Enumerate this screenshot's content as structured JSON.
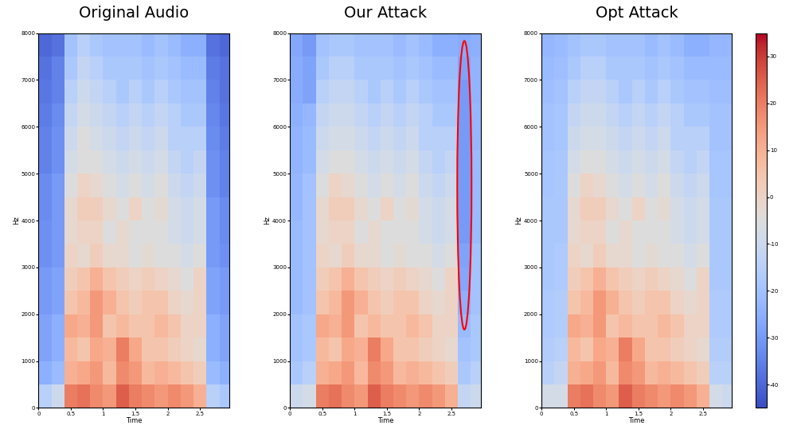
{
  "chart_data": [
    {
      "type": "heatmap",
      "title": "Original Audio",
      "x_label": "Time",
      "y_label": "Hz",
      "xlim": [
        0,
        2.95
      ],
      "ylim": [
        0,
        8000
      ],
      "xticks": [
        0,
        0.5,
        1,
        1.5,
        2,
        2.5
      ],
      "yticks": [
        0,
        1000,
        2000,
        3000,
        4000,
        5000,
        6000,
        7000,
        8000
      ],
      "x_edges": [
        0,
        0.2,
        0.4,
        0.6,
        0.8,
        1.0,
        1.2,
        1.4,
        1.6,
        1.8,
        2.0,
        2.2,
        2.4,
        2.6,
        2.8,
        3.0
      ],
      "y_edges": [
        0,
        500,
        1000,
        1500,
        2000,
        2500,
        3000,
        3500,
        4000,
        4500,
        5000,
        5500,
        6000,
        6500,
        7000,
        7500,
        8000
      ],
      "colorbar_range": [
        -45,
        35
      ],
      "cells": [
        [
          -15,
          -10,
          20,
          22,
          18,
          15,
          25,
          20,
          18,
          15,
          18,
          15,
          10,
          -15,
          -18
        ],
        [
          -25,
          -22,
          10,
          12,
          15,
          8,
          18,
          15,
          8,
          10,
          8,
          5,
          2,
          -22,
          -25
        ],
        [
          -28,
          -25,
          8,
          5,
          12,
          10,
          20,
          12,
          5,
          5,
          2,
          0,
          -2,
          -25,
          -28
        ],
        [
          -28,
          -25,
          12,
          10,
          15,
          5,
          8,
          5,
          5,
          8,
          5,
          0,
          0,
          -25,
          -28
        ],
        [
          -30,
          -28,
          5,
          8,
          15,
          10,
          5,
          2,
          5,
          5,
          0,
          -2,
          0,
          -28,
          -30
        ],
        [
          -30,
          -28,
          2,
          5,
          10,
          5,
          2,
          0,
          2,
          0,
          -2,
          -5,
          0,
          -28,
          -30
        ],
        [
          -32,
          -30,
          0,
          -2,
          2,
          -2,
          -2,
          -5,
          -3,
          -5,
          -5,
          -8,
          -5,
          -30,
          -32
        ],
        [
          -32,
          -30,
          -2,
          0,
          0,
          -5,
          -2,
          -5,
          -5,
          -5,
          -8,
          -10,
          -8,
          -30,
          -33
        ],
        [
          -33,
          -30,
          -2,
          2,
          2,
          -2,
          -5,
          0,
          -5,
          -3,
          -8,
          -10,
          -8,
          -30,
          -33
        ],
        [
          -33,
          -30,
          -5,
          0,
          -2,
          -5,
          -8,
          -5,
          -8,
          -5,
          -10,
          -12,
          -10,
          -32,
          -35
        ],
        [
          -35,
          -32,
          -8,
          -5,
          -5,
          -8,
          -10,
          -8,
          -10,
          -8,
          -12,
          -15,
          -12,
          -32,
          -35
        ],
        [
          -35,
          -32,
          -10,
          -5,
          -8,
          -10,
          -12,
          -10,
          -12,
          -10,
          -15,
          -15,
          -15,
          -33,
          -36
        ],
        [
          -36,
          -33,
          -12,
          -8,
          -10,
          -12,
          -15,
          -12,
          -15,
          -12,
          -15,
          -18,
          -18,
          -34,
          -37
        ],
        [
          -37,
          -35,
          -15,
          -10,
          -12,
          -15,
          -18,
          -15,
          -18,
          -15,
          -18,
          -20,
          -20,
          -35,
          -38
        ],
        [
          -38,
          -35,
          -18,
          -12,
          -15,
          -18,
          -18,
          -18,
          -20,
          -18,
          -20,
          -22,
          -22,
          -36,
          -38
        ],
        [
          -40,
          -38,
          -20,
          -15,
          -18,
          -20,
          -20,
          -20,
          -22,
          -20,
          -22,
          -25,
          -25,
          -38,
          -40
        ]
      ]
    },
    {
      "type": "heatmap",
      "title": "Our Attack",
      "x_label": "Time",
      "y_label": "Hz",
      "xlim": [
        0,
        2.95
      ],
      "ylim": [
        0,
        8000
      ],
      "xticks": [
        0,
        0.5,
        1,
        1.5,
        2,
        2.5
      ],
      "yticks": [
        0,
        1000,
        2000,
        3000,
        4000,
        5000,
        6000,
        7000,
        8000
      ],
      "x_edges": [
        0,
        0.2,
        0.4,
        0.6,
        0.8,
        1.0,
        1.2,
        1.4,
        1.6,
        1.8,
        2.0,
        2.2,
        2.4,
        2.6,
        2.8,
        3.0
      ],
      "y_edges": [
        0,
        500,
        1000,
        1500,
        2000,
        2500,
        3000,
        3500,
        4000,
        4500,
        5000,
        5500,
        6000,
        6500,
        7000,
        7500,
        8000
      ],
      "colorbar_range": [
        -45,
        35
      ],
      "cells": [
        [
          -10,
          -8,
          20,
          22,
          18,
          15,
          25,
          20,
          18,
          15,
          18,
          15,
          10,
          -12,
          -10
        ],
        [
          -18,
          -15,
          10,
          12,
          15,
          8,
          18,
          15,
          8,
          10,
          8,
          5,
          2,
          -18,
          -15
        ],
        [
          -20,
          -18,
          8,
          5,
          12,
          10,
          20,
          12,
          5,
          5,
          2,
          0,
          -2,
          -20,
          -18
        ],
        [
          -20,
          -18,
          12,
          10,
          15,
          5,
          8,
          5,
          5,
          8,
          5,
          0,
          0,
          -22,
          -18
        ],
        [
          -22,
          -20,
          5,
          8,
          15,
          10,
          5,
          2,
          5,
          5,
          0,
          -2,
          0,
          -25,
          -20
        ],
        [
          -22,
          -20,
          2,
          5,
          10,
          5,
          2,
          0,
          2,
          0,
          -2,
          -5,
          0,
          -27,
          -20
        ],
        [
          -22,
          -20,
          0,
          -2,
          2,
          -2,
          -2,
          -5,
          -3,
          -5,
          -5,
          -8,
          -5,
          -28,
          -20
        ],
        [
          -22,
          -20,
          -2,
          0,
          0,
          -5,
          -2,
          -5,
          -5,
          -5,
          -8,
          -10,
          -8,
          -30,
          -22
        ],
        [
          -23,
          -20,
          -2,
          2,
          2,
          -2,
          -5,
          0,
          -5,
          -3,
          -8,
          -10,
          -8,
          -30,
          -22
        ],
        [
          -23,
          -20,
          -5,
          0,
          -2,
          -5,
          -8,
          -5,
          -8,
          -5,
          -10,
          -12,
          -10,
          -30,
          -22
        ],
        [
          -24,
          -22,
          -8,
          -5,
          -5,
          -8,
          -10,
          -8,
          -10,
          -8,
          -12,
          -15,
          -12,
          -30,
          -22
        ],
        [
          -24,
          -22,
          -10,
          -8,
          -8,
          -10,
          -12,
          -10,
          -12,
          -10,
          -15,
          -15,
          -15,
          -30,
          -23
        ],
        [
          -25,
          -23,
          -12,
          -10,
          -10,
          -12,
          -15,
          -12,
          -15,
          -12,
          -15,
          -18,
          -18,
          -30,
          -23
        ],
        [
          -26,
          -28,
          -15,
          -12,
          -12,
          -15,
          -18,
          -15,
          -18,
          -15,
          -18,
          -20,
          -20,
          -30,
          -24
        ],
        [
          -26,
          -28,
          -18,
          -15,
          -15,
          -18,
          -18,
          -18,
          -20,
          -18,
          -20,
          -22,
          -22,
          -28,
          -24
        ],
        [
          -27,
          -30,
          -20,
          -18,
          -18,
          -20,
          -20,
          -20,
          -22,
          -20,
          -22,
          -25,
          -25,
          -26,
          -25
        ]
      ]
    },
    {
      "type": "heatmap",
      "title": "Opt Attack",
      "x_label": "Time",
      "y_label": "Hz",
      "xlim": [
        0,
        2.95
      ],
      "ylim": [
        0,
        8000
      ],
      "xticks": [
        0,
        0.5,
        1,
        1.5,
        2,
        2.5
      ],
      "yticks": [
        0,
        1000,
        2000,
        3000,
        4000,
        5000,
        6000,
        7000,
        8000
      ],
      "x_edges": [
        0,
        0.2,
        0.4,
        0.6,
        0.8,
        1.0,
        1.2,
        1.4,
        1.6,
        1.8,
        2.0,
        2.2,
        2.4,
        2.6,
        2.8,
        3.0
      ],
      "y_edges": [
        0,
        500,
        1000,
        1500,
        2000,
        2500,
        3000,
        3500,
        4000,
        4500,
        5000,
        5500,
        6000,
        6500,
        7000,
        7500,
        8000
      ],
      "colorbar_range": [
        -45,
        35
      ],
      "colorbar_ticks": [
        -40,
        -30,
        -20,
        -10,
        0,
        10,
        20,
        30
      ],
      "cells": [
        [
          -8,
          -8,
          20,
          22,
          18,
          15,
          25,
          20,
          18,
          15,
          18,
          15,
          10,
          -8,
          -10
        ],
        [
          -15,
          -12,
          10,
          12,
          15,
          8,
          18,
          15,
          8,
          10,
          8,
          5,
          2,
          -15,
          -15
        ],
        [
          -16,
          -15,
          8,
          5,
          12,
          10,
          20,
          12,
          5,
          5,
          2,
          0,
          -2,
          -16,
          -16
        ],
        [
          -17,
          -16,
          12,
          10,
          15,
          5,
          8,
          5,
          5,
          8,
          5,
          0,
          0,
          -17,
          -17
        ],
        [
          -17,
          -16,
          5,
          8,
          15,
          10,
          5,
          2,
          5,
          5,
          0,
          -2,
          0,
          -17,
          -17
        ],
        [
          -18,
          -17,
          2,
          5,
          10,
          5,
          2,
          0,
          2,
          0,
          -2,
          -5,
          0,
          -18,
          -18
        ],
        [
          -18,
          -17,
          0,
          -2,
          2,
          -2,
          -2,
          -5,
          -3,
          -5,
          -5,
          -8,
          -5,
          -18,
          -18
        ],
        [
          -18,
          -18,
          -2,
          0,
          0,
          -5,
          -2,
          -5,
          -5,
          -5,
          -8,
          -10,
          -8,
          -18,
          -18
        ],
        [
          -18,
          -18,
          -2,
          2,
          2,
          -2,
          -5,
          0,
          -5,
          -3,
          -8,
          -10,
          -8,
          -18,
          -18
        ],
        [
          -19,
          -18,
          -5,
          0,
          -2,
          -5,
          -8,
          -5,
          -8,
          -5,
          -10,
          -12,
          -10,
          -19,
          -19
        ],
        [
          -19,
          -18,
          -8,
          -5,
          -5,
          -8,
          -10,
          -8,
          -10,
          -8,
          -12,
          -15,
          -12,
          -19,
          -19
        ],
        [
          -20,
          -19,
          -10,
          -8,
          -8,
          -10,
          -12,
          -10,
          -12,
          -10,
          -15,
          -15,
          -15,
          -20,
          -20
        ],
        [
          -20,
          -19,
          -12,
          -10,
          -10,
          -12,
          -15,
          -12,
          -15,
          -12,
          -15,
          -18,
          -18,
          -20,
          -20
        ],
        [
          -21,
          -20,
          -15,
          -12,
          -12,
          -15,
          -18,
          -15,
          -18,
          -15,
          -18,
          -20,
          -20,
          -21,
          -21
        ],
        [
          -22,
          -21,
          -18,
          -15,
          -15,
          -18,
          -18,
          -18,
          -20,
          -18,
          -20,
          -22,
          -22,
          -22,
          -22
        ],
        [
          -23,
          -22,
          -20,
          -18,
          -18,
          -20,
          -20,
          -20,
          -22,
          -20,
          -22,
          -25,
          -25,
          -23,
          -23
        ]
      ]
    }
  ]
}
